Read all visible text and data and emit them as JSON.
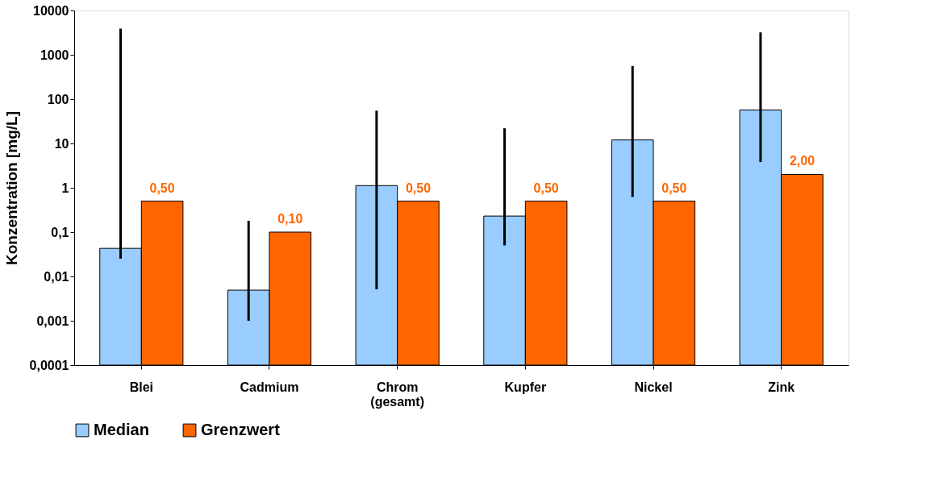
{
  "chart_data": {
    "type": "bar",
    "ylabel": "Konzentration [mg/L]",
    "categories": [
      "Blei",
      "Cadmium",
      "Chrom (gesamt)",
      "Kupfer",
      "Nickel",
      "Zink"
    ],
    "series": [
      {
        "name": "Median",
        "color": "#99ccff",
        "values": [
          0.043,
          0.0049,
          1.12,
          0.23,
          12,
          57
        ],
        "errors": [
          [
            0.025,
            3900
          ],
          [
            0.001,
            0.18
          ],
          [
            0.0051,
            55
          ],
          [
            0.05,
            22
          ],
          [
            0.62,
            560
          ],
          [
            3.8,
            3200
          ]
        ]
      },
      {
        "name": "Grenzwert",
        "color": "#ff6600",
        "values": [
          0.5,
          0.1,
          0.5,
          0.5,
          0.5,
          2
        ],
        "value_labels": [
          "0,50",
          "0,10",
          "0,50",
          "0,50",
          "0,50",
          "2,00"
        ]
      }
    ],
    "log": "y",
    "ylim": [
      0.0001,
      10000
    ],
    "yticks": [
      {
        "value": 0.0001,
        "label": "0,0001"
      },
      {
        "value": 0.001,
        "label": "0,001"
      },
      {
        "value": 0.01,
        "label": "0,01"
      },
      {
        "value": 0.1,
        "label": "0,1"
      },
      1,
      10,
      100,
      1000,
      10000
    ],
    "grid": false,
    "legend": "bottom"
  }
}
